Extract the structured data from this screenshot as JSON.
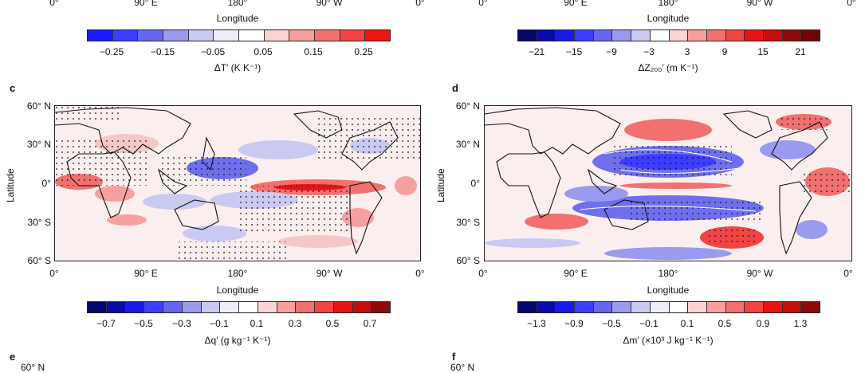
{
  "top_left": {
    "x_ticks": [
      "0°",
      "90° E",
      "180°",
      "90° W",
      "0°"
    ],
    "xlabel": "Longitude",
    "colorbar": {
      "ticks": [
        "−0.25",
        "−0.15",
        "−0.05",
        "0.05",
        "0.15",
        "0.25"
      ],
      "label": "ΔT′ (K K⁻¹)",
      "colors": [
        "#1a1aff",
        "#3d3dff",
        "#6666ee",
        "#9a9aee",
        "#c9c9f2",
        "#eeeefb",
        "#ffffff",
        "#fcd3d3",
        "#f79f9f",
        "#f27070",
        "#f24444",
        "#ee1515"
      ]
    }
  },
  "top_right": {
    "x_ticks": [
      "0°",
      "90° E",
      "180°",
      "90° W",
      "0°"
    ],
    "xlabel": "Longitude",
    "colorbar": {
      "ticks": [
        "−21",
        "−15",
        "−9",
        "−3",
        "3",
        "9",
        "15",
        "21"
      ],
      "label": "ΔZ₂₀₀′ (m K⁻¹)",
      "colors": [
        "#06066e",
        "#0a0aa8",
        "#1a1ae6",
        "#3d3dff",
        "#6666ee",
        "#9a9aee",
        "#c9c9f2",
        "#ffffff",
        "#fcd3d3",
        "#f79f9f",
        "#f27070",
        "#f24444",
        "#e61515",
        "#c40e0e",
        "#8e0a0a",
        "#6e0606"
      ]
    }
  },
  "panel_c": {
    "letter": "c",
    "y_ticks": [
      "60° N",
      "30° N",
      "0°",
      "30° S",
      "60° S"
    ],
    "ylabel": "Latitude",
    "x_ticks": [
      "0°",
      "90° E",
      "180°",
      "90° W",
      "0°"
    ],
    "xlabel": "Longitude",
    "colorbar": {
      "ticks": [
        "−0.7",
        "−0.5",
        "−0.3",
        "−0.1",
        "0.1",
        "0.3",
        "0.5",
        "0.7"
      ],
      "label": "Δq′ (g kg⁻¹ K⁻¹)",
      "colors": [
        "#06066e",
        "#0a0aa8",
        "#1a1ae6",
        "#3d3dff",
        "#6666ee",
        "#9a9aee",
        "#c9c9f2",
        "#eeeefb",
        "#ffffff",
        "#fcd3d3",
        "#f79f9f",
        "#f27070",
        "#f24444",
        "#e61515",
        "#c40e0e",
        "#8e0a0a"
      ]
    }
  },
  "panel_d": {
    "letter": "d",
    "y_ticks": [
      "60° N",
      "30° N",
      "0°",
      "30° S",
      "60° S"
    ],
    "ylabel": "Latitude",
    "x_ticks": [
      "0°",
      "90° E",
      "180°",
      "90° W",
      "0°"
    ],
    "xlabel": "Longitude",
    "colorbar": {
      "ticks": [
        "−1.3",
        "−0.9",
        "−0.5",
        "−0.1",
        "0.1",
        "0.5",
        "0.9",
        "1.3"
      ],
      "label": "Δm′ (×10³ J kg⁻¹ K⁻¹)",
      "colors": [
        "#06066e",
        "#0a0aa8",
        "#1a1ae6",
        "#3d3dff",
        "#6666ee",
        "#9a9aee",
        "#c9c9f2",
        "#eeeefb",
        "#ffffff",
        "#fcd3d3",
        "#f79f9f",
        "#f27070",
        "#f24444",
        "#e61515",
        "#c40e0e",
        "#8e0a0a"
      ]
    }
  },
  "panel_e": {
    "letter": "e",
    "y_tick_first": "60° N"
  },
  "panel_f": {
    "letter": "f",
    "y_tick_first": "60° N"
  }
}
